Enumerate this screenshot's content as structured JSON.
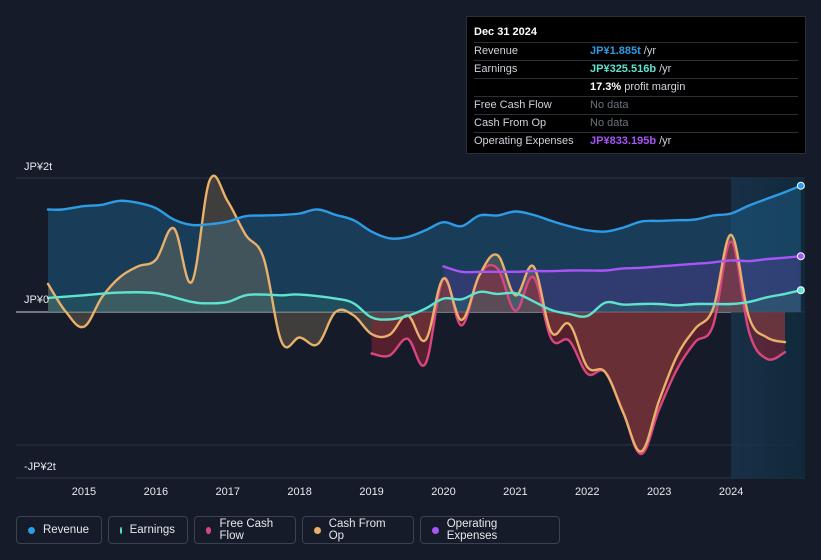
{
  "tooltip": {
    "date": "Dec 31 2024",
    "rows": [
      {
        "label": "Revenue",
        "value": "JP¥1.885t",
        "unit": "/yr",
        "color": "#2e9be6"
      },
      {
        "label": "Earnings",
        "value": "JP¥325.516b",
        "unit": "/yr",
        "color": "#5fe3d0"
      },
      {
        "label": "",
        "value": "17.3%",
        "unit": "profit margin",
        "color": "#ffffff"
      },
      {
        "label": "Free Cash Flow",
        "value": "No data",
        "unit": "",
        "color": "#6b7280"
      },
      {
        "label": "Cash From Op",
        "value": "No data",
        "unit": "",
        "color": "#6b7280"
      },
      {
        "label": "Operating Expenses",
        "value": "JP¥833.195b",
        "unit": "/yr",
        "color": "#a855f7"
      }
    ]
  },
  "legend": [
    {
      "label": "Revenue",
      "color": "#2e9be6"
    },
    {
      "label": "Earnings",
      "color": "#5fe3d0"
    },
    {
      "label": "Free Cash Flow",
      "color": "#d9467f"
    },
    {
      "label": "Cash From Op",
      "color": "#e8b06a"
    },
    {
      "label": "Operating Expenses",
      "color": "#a855f7"
    }
  ],
  "chart_data": {
    "type": "line",
    "title": "",
    "unit": "JP¥ trillions",
    "ylim": [
      -2,
      2
    ],
    "y_labels": [
      "JP¥2t",
      "JP¥0",
      "-JP¥2t"
    ],
    "x_ticks": [
      2015,
      2016,
      2017,
      2018,
      2019,
      2020,
      2021,
      2022,
      2023,
      2024
    ],
    "x_range": [
      2014.5,
      2025.0
    ],
    "past_highlight_start": 2024.0,
    "series": [
      {
        "name": "Revenue",
        "color": "#2e9be6",
        "fill": true,
        "x": [
          2014.5,
          2014.7,
          2015.0,
          2015.25,
          2015.5,
          2015.75,
          2016.0,
          2016.25,
          2016.5,
          2016.75,
          2017.0,
          2017.25,
          2017.5,
          2017.75,
          2018.0,
          2018.25,
          2018.5,
          2018.75,
          2019.0,
          2019.25,
          2019.5,
          2019.75,
          2020.0,
          2020.25,
          2020.5,
          2020.75,
          2021.0,
          2021.25,
          2021.5,
          2021.75,
          2022.0,
          2022.25,
          2022.5,
          2022.75,
          2023.0,
          2023.25,
          2023.5,
          2023.75,
          2024.0,
          2024.25,
          2024.5,
          2024.75,
          2024.97
        ],
        "y": [
          1.53,
          1.53,
          1.58,
          1.6,
          1.66,
          1.63,
          1.55,
          1.38,
          1.3,
          1.31,
          1.35,
          1.43,
          1.44,
          1.45,
          1.47,
          1.53,
          1.45,
          1.37,
          1.2,
          1.1,
          1.12,
          1.22,
          1.34,
          1.28,
          1.44,
          1.44,
          1.5,
          1.45,
          1.36,
          1.28,
          1.22,
          1.2,
          1.26,
          1.35,
          1.36,
          1.37,
          1.38,
          1.44,
          1.47,
          1.59,
          1.69,
          1.79,
          1.885
        ]
      },
      {
        "name": "Earnings",
        "color": "#5fe3d0",
        "fill": true,
        "x": [
          2014.5,
          2015.0,
          2015.5,
          2016.0,
          2016.5,
          2016.75,
          2017.0,
          2017.25,
          2017.5,
          2017.75,
          2018.0,
          2018.5,
          2018.75,
          2019.0,
          2019.25,
          2019.5,
          2019.75,
          2020.0,
          2020.25,
          2020.5,
          2020.75,
          2021.0,
          2021.25,
          2021.5,
          2021.75,
          2022.0,
          2022.25,
          2022.5,
          2022.75,
          2023.0,
          2023.25,
          2023.5,
          2023.75,
          2024.0,
          2024.25,
          2024.5,
          2024.75,
          2024.97
        ],
        "y": [
          0.21,
          0.25,
          0.29,
          0.28,
          0.15,
          0.13,
          0.15,
          0.25,
          0.26,
          0.25,
          0.26,
          0.2,
          0.13,
          -0.08,
          -0.11,
          -0.06,
          0.05,
          0.2,
          0.19,
          0.3,
          0.27,
          0.28,
          0.16,
          0.03,
          -0.03,
          -0.06,
          0.14,
          0.11,
          0.12,
          0.12,
          0.1,
          0.12,
          0.12,
          0.12,
          0.15,
          0.22,
          0.27,
          0.325
        ]
      },
      {
        "name": "Free Cash Flow",
        "color": "#d9467f",
        "fill": true,
        "x": [
          2019.0,
          2019.25,
          2019.5,
          2019.75,
          2020.0,
          2020.25,
          2020.5,
          2020.75,
          2021.0,
          2021.25,
          2021.5,
          2021.75,
          2022.0,
          2022.25,
          2022.5,
          2022.75,
          2023.0,
          2023.25,
          2023.5,
          2023.75,
          2024.0,
          2024.25,
          2024.5,
          2024.75
        ],
        "y": [
          -0.62,
          -0.65,
          -0.4,
          -0.77,
          0.5,
          -0.2,
          0.55,
          0.65,
          0.02,
          0.52,
          -0.4,
          -0.43,
          -0.92,
          -0.9,
          -1.5,
          -2.12,
          -1.45,
          -0.85,
          -0.45,
          -0.2,
          1.05,
          -0.3,
          -0.7,
          -0.6
        ]
      },
      {
        "name": "Cash From Op",
        "color": "#e8b06a",
        "fill": true,
        "x": [
          2014.5,
          2014.75,
          2015.0,
          2015.25,
          2015.5,
          2015.75,
          2016.0,
          2016.25,
          2016.5,
          2016.75,
          2017.0,
          2017.25,
          2017.5,
          2017.75,
          2018.0,
          2018.25,
          2018.5,
          2018.75,
          2019.0,
          2019.25,
          2019.5,
          2019.75,
          2020.0,
          2020.25,
          2020.5,
          2020.75,
          2021.0,
          2021.25,
          2021.5,
          2021.75,
          2022.0,
          2022.25,
          2022.5,
          2022.75,
          2023.0,
          2023.25,
          2023.5,
          2023.75,
          2024.0,
          2024.25,
          2024.5,
          2024.75
        ],
        "y": [
          0.42,
          0.0,
          -0.22,
          0.22,
          0.52,
          0.68,
          0.78,
          1.25,
          0.45,
          1.97,
          1.65,
          1.15,
          0.8,
          -0.45,
          -0.38,
          -0.48,
          0.0,
          -0.05,
          -0.33,
          -0.34,
          -0.05,
          -0.42,
          0.5,
          -0.12,
          0.55,
          0.85,
          0.25,
          0.68,
          -0.3,
          -0.18,
          -0.82,
          -0.9,
          -1.5,
          -2.08,
          -1.32,
          -0.65,
          -0.25,
          0.05,
          1.15,
          -0.08,
          -0.38,
          -0.45
        ]
      },
      {
        "name": "Operating Expenses",
        "color": "#a855f7",
        "fill": true,
        "x": [
          2020.0,
          2020.25,
          2020.5,
          2020.75,
          2021.0,
          2021.25,
          2021.5,
          2021.75,
          2022.0,
          2022.25,
          2022.5,
          2022.75,
          2023.0,
          2023.25,
          2023.5,
          2023.75,
          2024.0,
          2024.25,
          2024.5,
          2024.75,
          2024.97
        ],
        "y": [
          0.68,
          0.6,
          0.6,
          0.6,
          0.6,
          0.61,
          0.61,
          0.62,
          0.62,
          0.62,
          0.65,
          0.66,
          0.68,
          0.7,
          0.72,
          0.74,
          0.77,
          0.76,
          0.79,
          0.81,
          0.833
        ]
      }
    ]
  }
}
